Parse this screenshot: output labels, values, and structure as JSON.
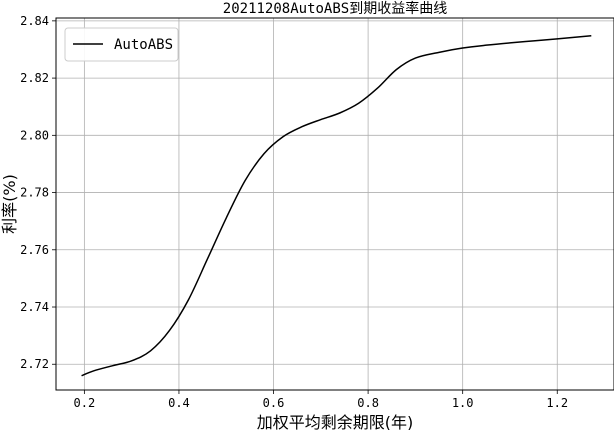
{
  "chart_data": {
    "type": "line",
    "title": "20211208AutoABS到期收益率曲线",
    "xlabel": "加权平均剩余期限(年)",
    "ylabel": "利率(%)",
    "xlim": [
      0.14,
      1.32
    ],
    "ylim": [
      2.711,
      2.841
    ],
    "xticks": [
      0.2,
      0.4,
      0.6,
      0.8,
      1.0,
      1.2
    ],
    "xtick_labels": [
      "0.2",
      "0.4",
      "0.6",
      "0.8",
      "1.0",
      "1.2"
    ],
    "yticks": [
      2.72,
      2.74,
      2.76,
      2.78,
      2.8,
      2.82,
      2.84
    ],
    "ytick_labels": [
      "2.72",
      "2.74",
      "2.76",
      "2.78",
      "2.80",
      "2.82",
      "2.84"
    ],
    "grid": true,
    "legend_position": "top-left",
    "series": [
      {
        "name": "AutoABS",
        "color": "#000000",
        "x": [
          0.194,
          0.22,
          0.26,
          0.3,
          0.34,
          0.38,
          0.42,
          0.46,
          0.5,
          0.54,
          0.58,
          0.62,
          0.66,
          0.7,
          0.74,
          0.78,
          0.82,
          0.86,
          0.9,
          0.95,
          1.0,
          1.05,
          1.1,
          1.15,
          1.2,
          1.272
        ],
        "y": [
          2.716,
          2.7177,
          2.7195,
          2.7212,
          2.7247,
          2.7318,
          2.7425,
          2.7567,
          2.7711,
          2.7842,
          2.7936,
          2.7995,
          2.803,
          2.8055,
          2.8078,
          2.8112,
          2.8165,
          2.823,
          2.827,
          2.829,
          2.8305,
          2.8315,
          2.8323,
          2.833,
          2.8337,
          2.8348
        ]
      }
    ]
  }
}
